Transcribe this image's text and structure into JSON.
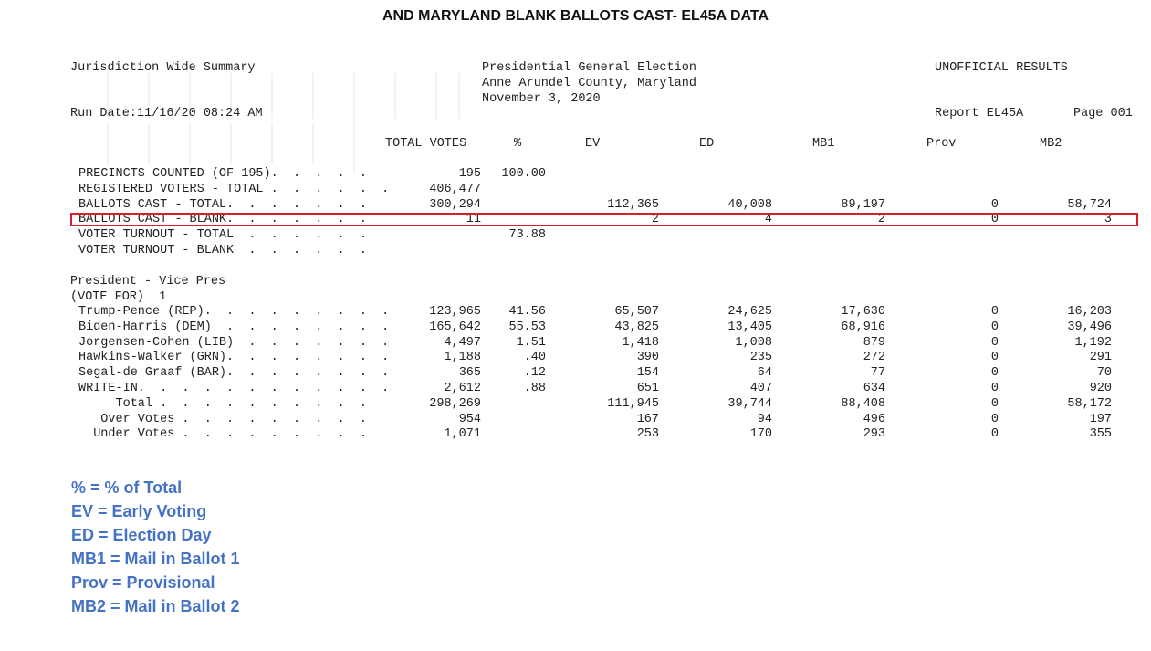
{
  "title": "AND MARYLAND BLANK BALLOTS CAST- EL45A DATA",
  "header": {
    "left": "Jurisdiction Wide Summary",
    "center": [
      "Presidential General Election",
      "Anne Arundel County, Maryland",
      "November 3, 2020"
    ],
    "right": "UNOFFICIAL RESULTS",
    "run_date": "Run Date:11/16/20 08:24 AM",
    "report": "Report EL45A",
    "page": "Page 001"
  },
  "columns": [
    "TOTAL VOTES",
    "%",
    "EV",
    "ED",
    "MB1",
    "Prov",
    "MB2"
  ],
  "summary_rows": [
    {
      "label": "PRECINCTS COUNTED (OF 195).  .  .  .  .",
      "values": [
        "195",
        "100.00",
        "",
        "",
        "",
        "",
        ""
      ]
    },
    {
      "label": "REGISTERED VOTERS - TOTAL .  .  .  .  .  .",
      "values": [
        "406,477",
        "",
        "",
        "",
        "",
        "",
        ""
      ]
    },
    {
      "label": "BALLOTS CAST - TOTAL.  .  .  .  .  .  .",
      "values": [
        "300,294",
        "",
        "112,365",
        "40,008",
        "89,197",
        "0",
        "58,724"
      ]
    },
    {
      "label": "BALLOTS CAST - BLANK.  .  .  .  .  .  .",
      "values": [
        "11",
        "",
        "2",
        "4",
        "2",
        "0",
        "3"
      ]
    },
    {
      "label": "VOTER TURNOUT - TOTAL  .  .  .  .  .  .",
      "values": [
        "",
        "73.88",
        "",
        "",
        "",
        "",
        ""
      ]
    },
    {
      "label": "VOTER TURNOUT - BLANK  .  .  .  .  .  .",
      "values": [
        "",
        "",
        "",
        "",
        "",
        "",
        ""
      ]
    }
  ],
  "contest": {
    "title": "President - Vice Pres",
    "vote_for": "(VOTE FOR)  1",
    "rows": [
      {
        "label": "Trump-Pence (REP).  .  .  .  .  .  .  .  .",
        "values": [
          "123,965",
          "41.56",
          "65,507",
          "24,625",
          "17,630",
          "0",
          "16,203"
        ]
      },
      {
        "label": "Biden-Harris (DEM)  .  .  .  .  .  .  .  .",
        "values": [
          "165,642",
          "55.53",
          "43,825",
          "13,405",
          "68,916",
          "0",
          "39,496"
        ]
      },
      {
        "label": "Jorgensen-Cohen (LIB)  .  .  .  .  .  .  .",
        "values": [
          "4,497",
          "1.51",
          "1,418",
          "1,008",
          "879",
          "0",
          "1,192"
        ]
      },
      {
        "label": "Hawkins-Walker (GRN).  .  .  .  .  .  .  .",
        "values": [
          "1,188",
          ".40",
          "390",
          "235",
          "272",
          "0",
          "291"
        ]
      },
      {
        "label": "Segal-de Graaf (BAR).  .  .  .  .  .  .  .",
        "values": [
          "365",
          ".12",
          "154",
          "64",
          "77",
          "0",
          "70"
        ]
      },
      {
        "label": "WRITE-IN.  .  .  .  .  .  .  .  .  .  .  .",
        "values": [
          "2,612",
          ".88",
          "651",
          "407",
          "634",
          "0",
          "920"
        ]
      },
      {
        "label": "     Total .  .  .  .  .  .  .  .  .  .",
        "values": [
          "298,269",
          "",
          "111,945",
          "39,744",
          "88,408",
          "0",
          "58,172"
        ]
      },
      {
        "label": "   Over Votes .  .  .  .  .  .  .  .  .",
        "values": [
          "954",
          "",
          "167",
          "94",
          "496",
          "0",
          "197"
        ]
      },
      {
        "label": "  Under Votes .  .  .  .  .  .  .  .  .",
        "values": [
          "1,071",
          "",
          "253",
          "170",
          "293",
          "0",
          "355"
        ]
      }
    ]
  },
  "legend": [
    "% = % of Total",
    "EV = Early Voting",
    "ED = Election Day",
    "MB1 = Mail in Ballot 1",
    "Prov = Provisional",
    "MB2 = Mail in Ballot 2"
  ],
  "colors": {
    "legend": "#4472c4",
    "highlight": "#d8202a"
  }
}
